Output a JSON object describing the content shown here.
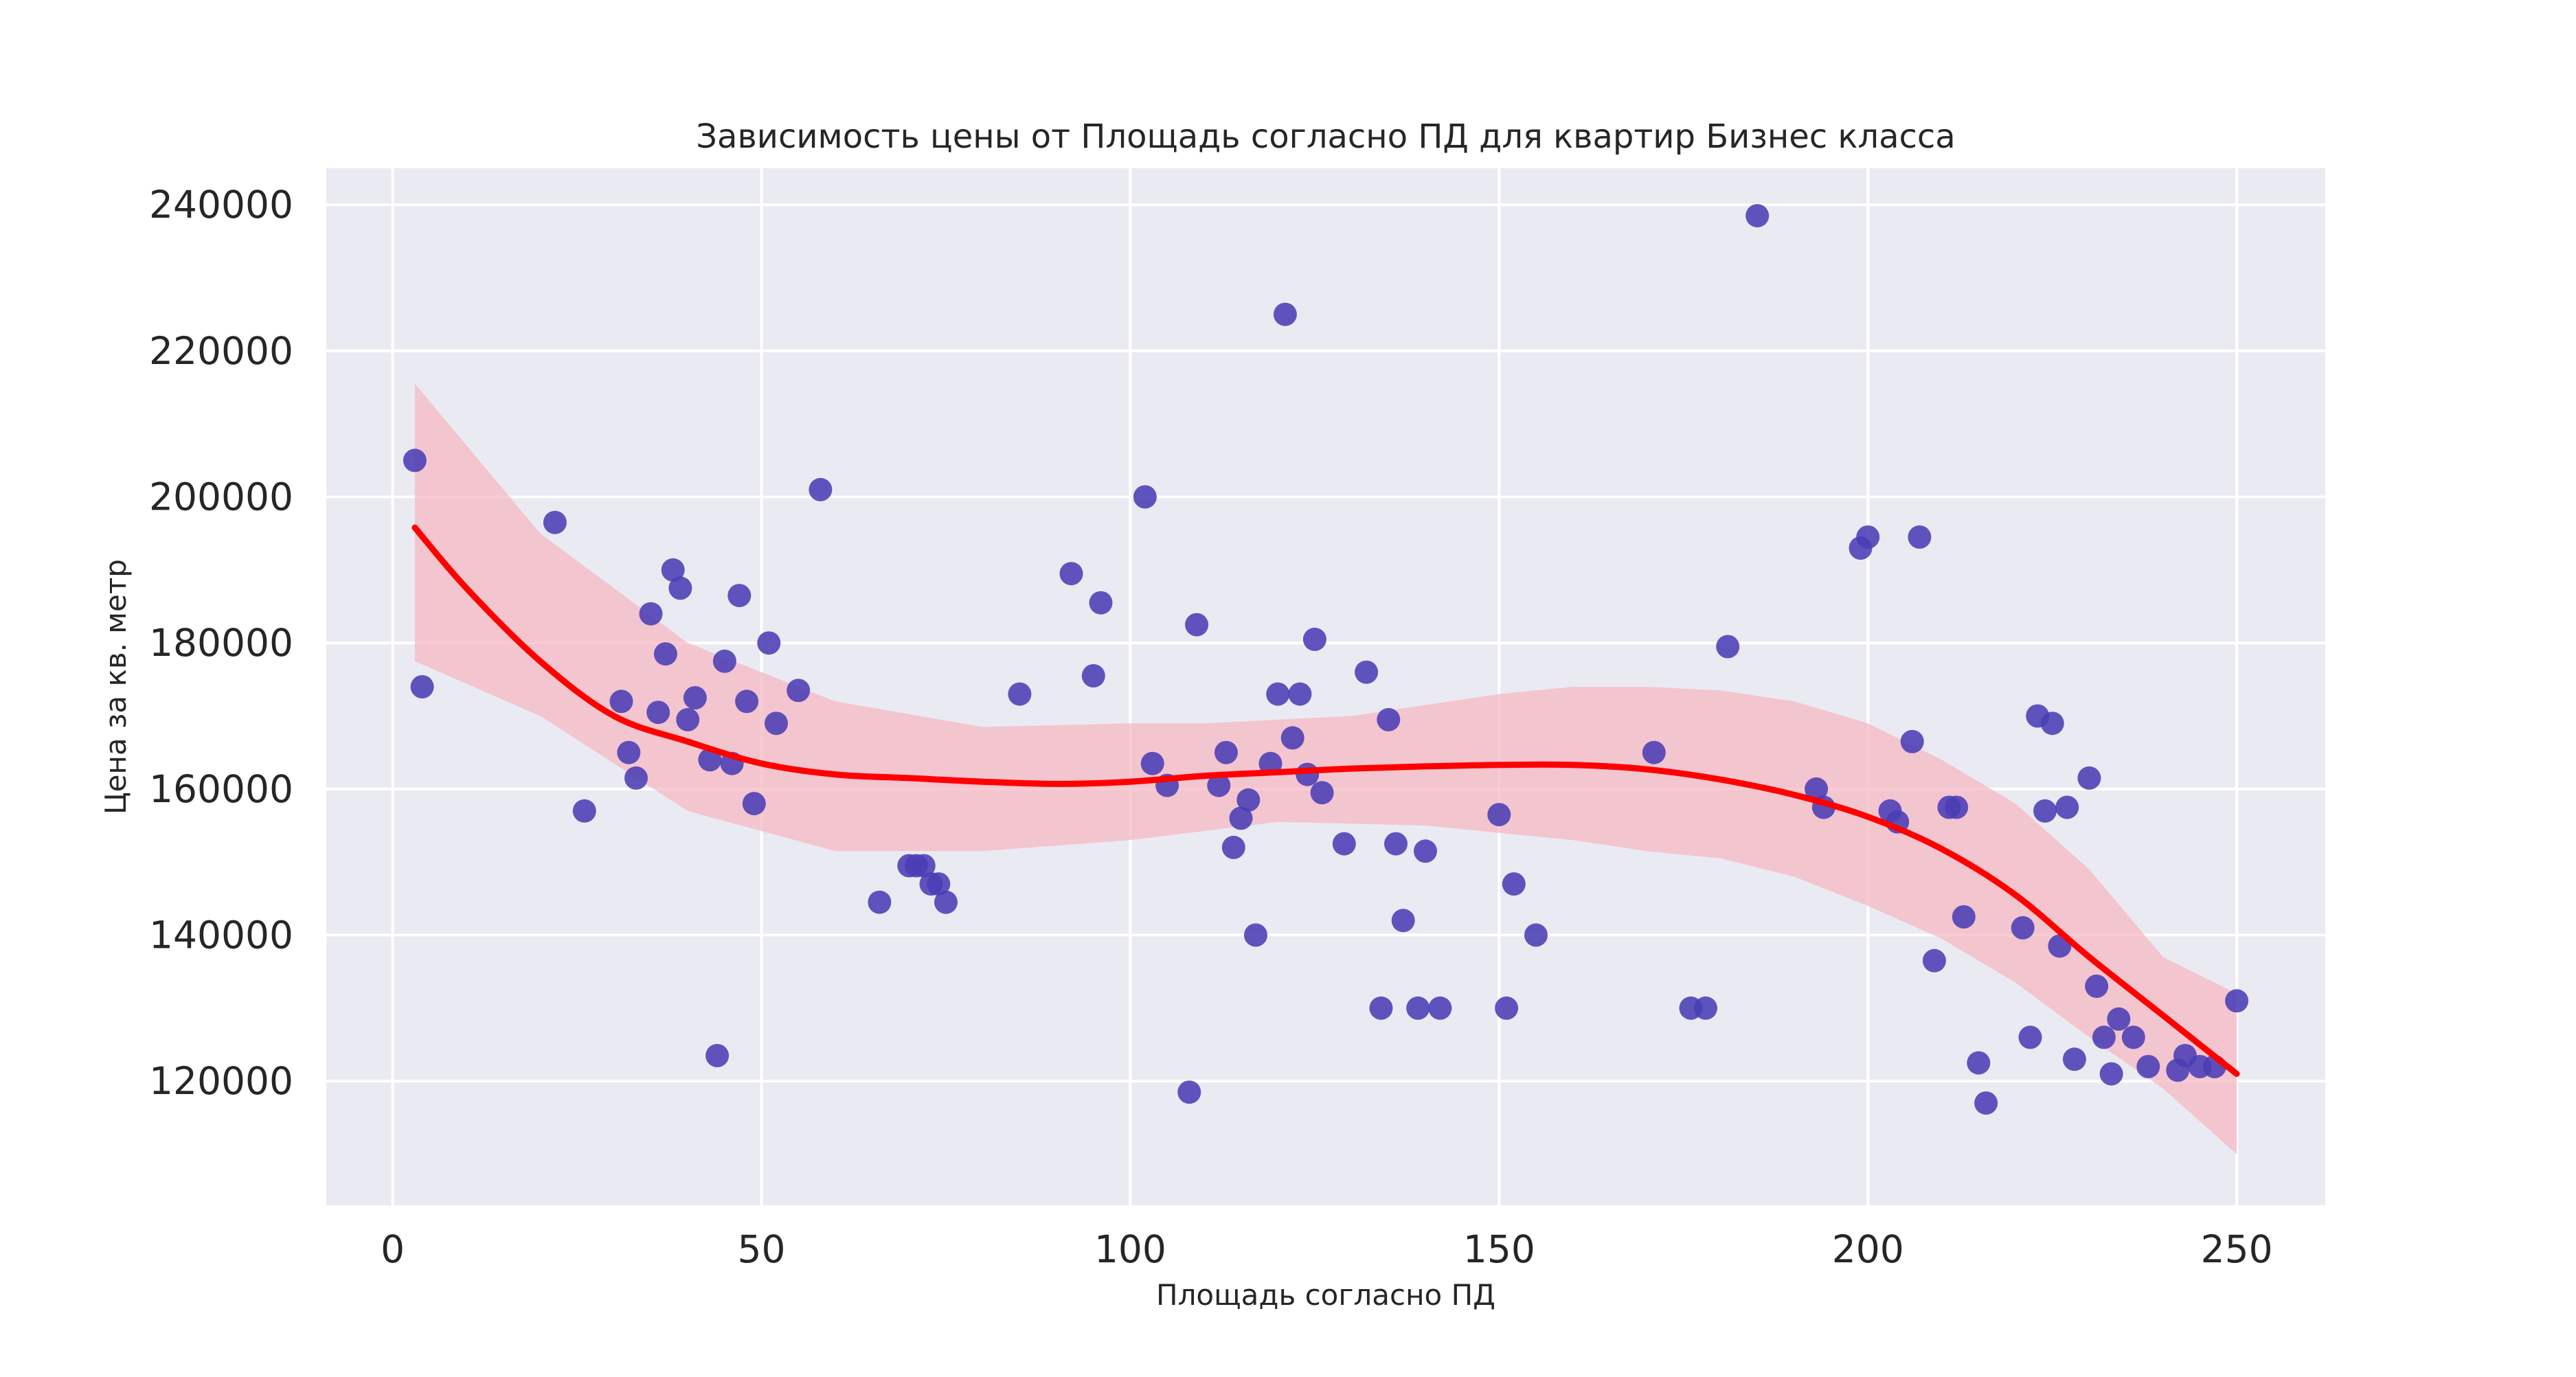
{
  "chart_data": {
    "type": "scatter",
    "title": "Зависимость цены от Площадь согласно ПД для квартир Бизнес класса",
    "xlabel": "Площадь согласно ПД",
    "ylabel": "Цена за кв. метр",
    "xlim": [
      -9,
      262
    ],
    "ylim": [
      103000,
      245000
    ],
    "x_ticks": [
      "0",
      "50",
      "100",
      "150",
      "200",
      "250"
    ],
    "x_tick_values": [
      0,
      50,
      100,
      150,
      200,
      250
    ],
    "y_ticks": [
      "120000",
      "140000",
      "160000",
      "180000",
      "200000",
      "220000",
      "240000"
    ],
    "y_tick_values": [
      120000,
      140000,
      160000,
      180000,
      200000,
      220000,
      240000
    ],
    "grid": true,
    "colors": {
      "background": "#eaeaf2",
      "grid": "#ffffff",
      "points": "#4a3db5",
      "trend": "#ff0000",
      "band": "#f5b8c3"
    },
    "points": [
      [
        3,
        205000
      ],
      [
        4,
        174000
      ],
      [
        22,
        196500
      ],
      [
        26,
        157000
      ],
      [
        31,
        172000
      ],
      [
        32,
        165000
      ],
      [
        33,
        161500
      ],
      [
        35,
        184000
      ],
      [
        36,
        170500
      ],
      [
        37,
        178500
      ],
      [
        38,
        190000
      ],
      [
        39,
        187500
      ],
      [
        40,
        169500
      ],
      [
        41,
        172500
      ],
      [
        43,
        164000
      ],
      [
        44,
        123500
      ],
      [
        45,
        177500
      ],
      [
        46,
        163500
      ],
      [
        47,
        186500
      ],
      [
        48,
        172000
      ],
      [
        49,
        158000
      ],
      [
        51,
        180000
      ],
      [
        52,
        169000
      ],
      [
        55,
        173500
      ],
      [
        58,
        201000
      ],
      [
        66,
        144500
      ],
      [
        70,
        149500
      ],
      [
        71,
        149500
      ],
      [
        72,
        149500
      ],
      [
        73,
        147000
      ],
      [
        74,
        147000
      ],
      [
        75,
        144500
      ],
      [
        85,
        173000
      ],
      [
        92,
        189500
      ],
      [
        95,
        175500
      ],
      [
        96,
        185500
      ],
      [
        102,
        200000
      ],
      [
        103,
        163500
      ],
      [
        105,
        160500
      ],
      [
        108,
        118500
      ],
      [
        109,
        182500
      ],
      [
        112,
        160500
      ],
      [
        113,
        165000
      ],
      [
        114,
        152000
      ],
      [
        115,
        156000
      ],
      [
        116,
        158500
      ],
      [
        117,
        140000
      ],
      [
        119,
        163500
      ],
      [
        120,
        173000
      ],
      [
        121,
        225000
      ],
      [
        122,
        167000
      ],
      [
        123,
        173000
      ],
      [
        124,
        162000
      ],
      [
        125,
        180500
      ],
      [
        126,
        159500
      ],
      [
        129,
        152500
      ],
      [
        132,
        176000
      ],
      [
        134,
        130000
      ],
      [
        135,
        169500
      ],
      [
        136,
        152500
      ],
      [
        137,
        142000
      ],
      [
        139,
        130000
      ],
      [
        140,
        151500
      ],
      [
        142,
        130000
      ],
      [
        150,
        156500
      ],
      [
        151,
        130000
      ],
      [
        152,
        147000
      ],
      [
        155,
        140000
      ],
      [
        171,
        165000
      ],
      [
        176,
        130000
      ],
      [
        178,
        130000
      ],
      [
        181,
        179500
      ],
      [
        185,
        238500
      ],
      [
        193,
        160000
      ],
      [
        194,
        157500
      ],
      [
        199,
        193000
      ],
      [
        200,
        194500
      ],
      [
        203,
        157000
      ],
      [
        204,
        155500
      ],
      [
        206,
        166500
      ],
      [
        207,
        194500
      ],
      [
        209,
        136500
      ],
      [
        211,
        157500
      ],
      [
        212,
        157500
      ],
      [
        213,
        142500
      ],
      [
        215,
        122500
      ],
      [
        216,
        117000
      ],
      [
        221,
        141000
      ],
      [
        222,
        126000
      ],
      [
        223,
        170000
      ],
      [
        224,
        157000
      ],
      [
        225,
        169000
      ],
      [
        226,
        138500
      ],
      [
        227,
        157500
      ],
      [
        228,
        123000
      ],
      [
        230,
        161500
      ],
      [
        231,
        133000
      ],
      [
        232,
        126000
      ],
      [
        233,
        121000
      ],
      [
        234,
        128500
      ],
      [
        236,
        126000
      ],
      [
        238,
        122000
      ],
      [
        242,
        121500
      ],
      [
        243,
        123500
      ],
      [
        245,
        122000
      ],
      [
        247,
        122000
      ],
      [
        250,
        131000
      ]
    ],
    "trend_line": [
      [
        3,
        195800
      ],
      [
        10,
        187500
      ],
      [
        20,
        177500
      ],
      [
        30,
        170000
      ],
      [
        40,
        166500
      ],
      [
        50,
        163500
      ],
      [
        60,
        162000
      ],
      [
        70,
        161500
      ],
      [
        80,
        161000
      ],
      [
        90,
        160700
      ],
      [
        100,
        161000
      ],
      [
        110,
        161800
      ],
      [
        120,
        162300
      ],
      [
        130,
        162800
      ],
      [
        140,
        163100
      ],
      [
        150,
        163300
      ],
      [
        160,
        163300
      ],
      [
        170,
        162700
      ],
      [
        180,
        161300
      ],
      [
        190,
        159200
      ],
      [
        200,
        156200
      ],
      [
        210,
        151800
      ],
      [
        220,
        145500
      ],
      [
        230,
        137000
      ],
      [
        240,
        129000
      ],
      [
        250,
        121000
      ]
    ],
    "confidence_band_upper": [
      [
        3,
        215500
      ],
      [
        20,
        195000
      ],
      [
        40,
        180000
      ],
      [
        60,
        172000
      ],
      [
        80,
        168500
      ],
      [
        100,
        169000
      ],
      [
        110,
        169000
      ],
      [
        120,
        169500
      ],
      [
        130,
        170000
      ],
      [
        140,
        171500
      ],
      [
        150,
        173000
      ],
      [
        160,
        174000
      ],
      [
        170,
        174000
      ],
      [
        180,
        173500
      ],
      [
        190,
        172000
      ],
      [
        200,
        169000
      ],
      [
        210,
        164000
      ],
      [
        220,
        158000
      ],
      [
        230,
        149000
      ],
      [
        240,
        137000
      ],
      [
        250,
        132000
      ]
    ],
    "confidence_band_lower": [
      [
        3,
        177500
      ],
      [
        20,
        170000
      ],
      [
        40,
        157000
      ],
      [
        60,
        151500
      ],
      [
        80,
        151500
      ],
      [
        100,
        153000
      ],
      [
        120,
        155500
      ],
      [
        140,
        155000
      ],
      [
        150,
        154000
      ],
      [
        160,
        153000
      ],
      [
        170,
        151500
      ],
      [
        180,
        150500
      ],
      [
        190,
        148000
      ],
      [
        200,
        144000
      ],
      [
        210,
        139500
      ],
      [
        220,
        133500
      ],
      [
        230,
        126000
      ],
      [
        240,
        119000
      ],
      [
        250,
        110000
      ]
    ]
  }
}
